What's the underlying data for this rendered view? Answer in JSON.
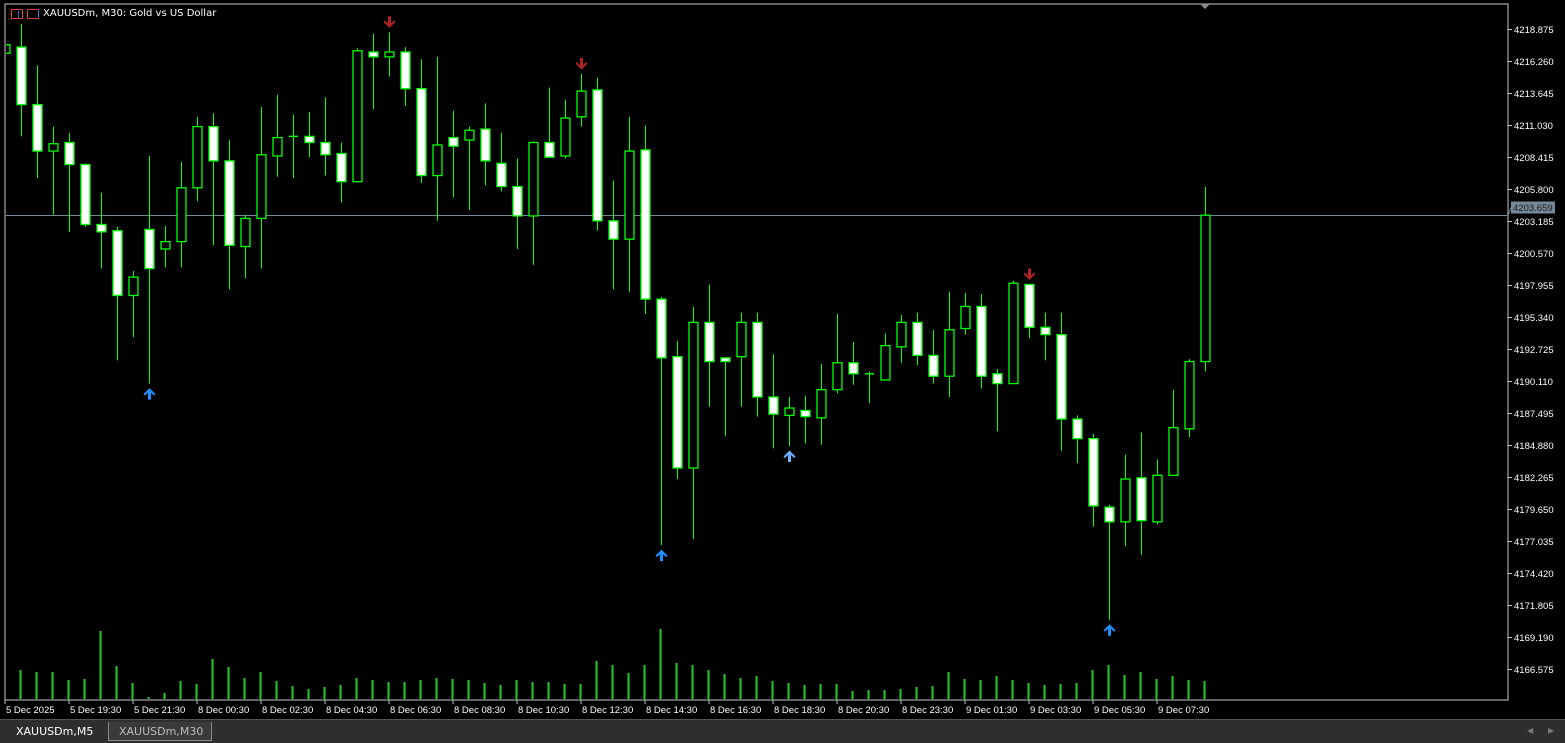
{
  "window": {
    "title": "XAUUSDm, M30:  Gold vs US Dollar"
  },
  "tabs": [
    {
      "label": "XAUUSDm,M5",
      "active": true
    },
    {
      "label": "XAUUSDm,M30",
      "active": false
    }
  ],
  "icons": [
    "chart-list-icon",
    "chart-properties-icon",
    "scroll-left-icon",
    "scroll-right-icon"
  ],
  "colors": {
    "background": "#000000",
    "candle_outline": "#00ff00",
    "bear_body": "#ffffff",
    "bull_body": "#000000",
    "volume": "#22cc22",
    "grid_axis": "#c8c8c8",
    "bid_line": "#778899",
    "sell_arrow": "#b22222",
    "buy_arrow": "#1e90ff",
    "buy_arrow_light": "#6ab4ff"
  },
  "chart_data": {
    "type": "candlestick",
    "symbol": "XAUUSDm",
    "timeframe": "M30",
    "ylim": [
      4164.04,
      4220.92
    ],
    "grid": false,
    "y_ticks": [
      "4218.875",
      "4216.260",
      "4213.645",
      "4211.030",
      "4208.415",
      "4205.800",
      "4203.185",
      "4200.570",
      "4197.955",
      "4195.340",
      "4192.725",
      "4190.110",
      "4187.495",
      "4184.880",
      "4182.265",
      "4179.650",
      "4177.035",
      "4174.420",
      "4171.805",
      "4169.190",
      "4166.575"
    ],
    "current_price": "4203.659",
    "x_labels": [
      "5 Dec 2025",
      "5 Dec 19:30",
      "5 Dec 21:30",
      "8 Dec 00:30",
      "8 Dec 02:30",
      "8 Dec 04:30",
      "8 Dec 06:30",
      "8 Dec 08:30",
      "8 Dec 10:30",
      "8 Dec 12:30",
      "8 Dec 14:30",
      "8 Dec 16:30",
      "8 Dec 18:30",
      "8 Dec 20:30",
      "8 Dec 23:30",
      "9 Dec 01:30",
      "9 Dec 03:30",
      "9 Dec 05:30",
      "9 Dec 07:30"
    ],
    "x_label_every_n_candles": 4,
    "ohlc": [
      [
        4216.9,
        4218.0,
        4216.5,
        4217.6
      ],
      [
        4217.4,
        4219.3,
        4210.1,
        4212.7
      ],
      [
        4212.7,
        4215.9,
        4206.7,
        4208.9
      ],
      [
        4208.9,
        4210.9,
        4203.7,
        4209.5
      ],
      [
        4209.6,
        4210.4,
        4202.3,
        4207.8
      ],
      [
        4207.8,
        4207.9,
        4202.7,
        4202.9
      ],
      [
        4202.9,
        4205.5,
        4199.3,
        4202.3
      ],
      [
        4202.4,
        4202.7,
        4191.8,
        4197.1
      ],
      [
        4197.1,
        4199.1,
        4193.7,
        4198.6
      ],
      [
        4202.5,
        4208.5,
        4189.9,
        4199.3
      ],
      [
        4200.9,
        4202.8,
        4199.4,
        4201.5
      ],
      [
        4201.5,
        4208.0,
        4199.4,
        4205.9
      ],
      [
        4205.9,
        4211.7,
        4204.8,
        4210.9
      ],
      [
        4210.9,
        4212.0,
        4201.2,
        4208.1
      ],
      [
        4208.1,
        4209.8,
        4197.6,
        4201.2
      ],
      [
        4201.1,
        4203.7,
        4198.5,
        4203.4
      ],
      [
        4203.4,
        4212.5,
        4199.3,
        4208.6
      ],
      [
        4208.5,
        4213.5,
        4206.8,
        4210.0
      ],
      [
        4210.1,
        4211.9,
        4206.7,
        4210.0
      ],
      [
        4210.1,
        4212.1,
        4208.4,
        4209.6
      ],
      [
        4209.6,
        4213.3,
        4206.9,
        4208.6
      ],
      [
        4208.7,
        4209.6,
        4204.7,
        4206.4
      ],
      [
        4206.4,
        4217.3,
        4206.4,
        4217.1
      ],
      [
        4217.0,
        4218.5,
        4212.3,
        4216.6
      ],
      [
        4216.6,
        4218.6,
        4215.0,
        4217.0
      ],
      [
        4217.0,
        4217.4,
        4212.6,
        4214.0
      ],
      [
        4214.0,
        4216.4,
        4206.3,
        4206.9
      ],
      [
        4206.9,
        4216.6,
        4203.2,
        4209.4
      ],
      [
        4210.0,
        4212.2,
        4205.1,
        4209.3
      ],
      [
        4209.8,
        4210.9,
        4204.1,
        4210.6
      ],
      [
        4210.7,
        4212.8,
        4206.1,
        4208.1
      ],
      [
        4207.9,
        4210.4,
        4205.6,
        4206.0
      ],
      [
        4206.0,
        4208.3,
        4200.9,
        4203.6
      ],
      [
        4203.6,
        4209.7,
        4199.6,
        4209.6
      ],
      [
        4209.6,
        4214.1,
        4208.4,
        4208.4
      ],
      [
        4208.5,
        4213.1,
        4208.3,
        4211.6
      ],
      [
        4211.7,
        4215.2,
        4210.9,
        4213.8
      ],
      [
        4213.9,
        4214.9,
        4202.4,
        4203.2
      ],
      [
        4203.2,
        4206.5,
        4197.6,
        4201.7
      ],
      [
        4201.7,
        4211.7,
        4197.4,
        4208.9
      ],
      [
        4209.0,
        4211.0,
        4195.6,
        4196.8
      ],
      [
        4196.8,
        4197.0,
        4176.7,
        4192.0
      ],
      [
        4192.1,
        4193.4,
        4182.1,
        4183.0
      ],
      [
        4183.0,
        4196.2,
        4177.2,
        4194.9
      ],
      [
        4194.9,
        4198.0,
        4188.0,
        4191.7
      ],
      [
        4192.0,
        4192.0,
        4185.6,
        4191.7
      ],
      [
        4192.1,
        4195.7,
        4188.0,
        4194.9
      ],
      [
        4194.9,
        4195.7,
        4187.2,
        4188.8
      ],
      [
        4188.8,
        4192.3,
        4184.6,
        4187.4
      ],
      [
        4187.3,
        4188.8,
        4184.8,
        4187.9
      ],
      [
        4187.7,
        4188.9,
        4185.0,
        4187.2
      ],
      [
        4187.1,
        4191.5,
        4184.9,
        4189.4
      ],
      [
        4189.4,
        4195.6,
        4189.1,
        4191.6
      ],
      [
        4191.6,
        4193.3,
        4189.8,
        4190.7
      ],
      [
        4190.7,
        4190.9,
        4188.3,
        4190.7
      ],
      [
        4190.2,
        4194.0,
        4190.2,
        4193.0
      ],
      [
        4192.9,
        4195.5,
        4191.6,
        4194.9
      ],
      [
        4194.9,
        4195.7,
        4191.4,
        4192.2
      ],
      [
        4192.2,
        4194.3,
        4189.9,
        4190.5
      ],
      [
        4190.5,
        4197.4,
        4188.8,
        4194.3
      ],
      [
        4194.4,
        4197.3,
        4193.9,
        4196.2
      ],
      [
        4196.2,
        4197.2,
        4189.5,
        4190.5
      ],
      [
        4190.7,
        4191.1,
        4186.0,
        4189.9
      ],
      [
        4189.9,
        4198.3,
        4189.9,
        4198.1
      ],
      [
        4198.0,
        4198.0,
        4193.6,
        4194.5
      ],
      [
        4194.5,
        4195.7,
        4191.8,
        4193.9
      ],
      [
        4193.9,
        4195.7,
        4184.4,
        4187.0
      ],
      [
        4187.0,
        4187.3,
        4183.4,
        4185.4
      ],
      [
        4185.4,
        4185.8,
        4178.2,
        4179.9
      ],
      [
        4179.8,
        4180.0,
        4170.6,
        4178.6
      ],
      [
        4178.6,
        4184.1,
        4176.6,
        4182.1
      ],
      [
        4182.2,
        4185.9,
        4175.9,
        4178.7
      ],
      [
        4178.6,
        4183.7,
        4178.4,
        4182.4
      ],
      [
        4182.4,
        4189.4,
        4182.4,
        4186.3
      ],
      [
        4186.2,
        4191.9,
        4185.5,
        4191.7
      ],
      [
        4191.7,
        4206.0,
        4190.9,
        4203.66
      ]
    ],
    "tick_volume_relative": [
      null,
      29,
      27,
      27,
      19,
      20,
      68,
      33,
      16,
      2,
      6,
      18,
      15,
      40,
      32,
      21,
      27,
      18,
      13,
      10,
      12,
      14,
      21,
      19,
      17,
      17,
      19,
      21,
      20,
      19,
      16,
      14,
      19,
      17,
      17,
      15,
      15,
      38,
      34,
      26,
      34,
      70,
      36,
      34,
      29,
      25,
      21,
      23,
      18,
      16,
      14,
      15,
      15,
      8,
      9,
      9,
      10,
      12,
      13,
      27,
      20,
      19,
      23,
      19,
      16,
      14,
      15,
      16,
      29,
      34,
      24,
      27,
      20,
      23,
      19,
      18
    ],
    "signals": [
      {
        "candle": 9,
        "type": "buy"
      },
      {
        "candle": 24,
        "type": "sell"
      },
      {
        "candle": 36,
        "type": "sell"
      },
      {
        "candle": 41,
        "type": "buy"
      },
      {
        "candle": 49,
        "type": "buy-light"
      },
      {
        "candle": 64,
        "type": "sell"
      },
      {
        "candle": 69,
        "type": "buy"
      }
    ]
  }
}
